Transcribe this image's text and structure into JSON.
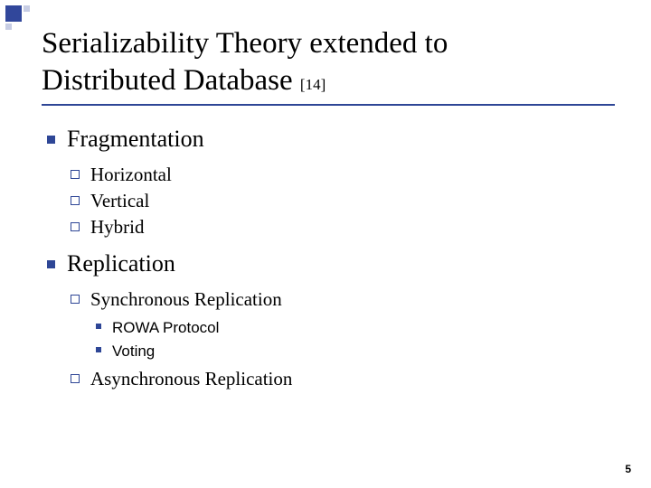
{
  "title": {
    "line1": "Serializability Theory extended to",
    "line2_main": "Distributed Database ",
    "line2_ref": "[14]"
  },
  "bullets": [
    {
      "label": "Fragmentation",
      "children": [
        {
          "label": "Horizontal"
        },
        {
          "label": "Vertical"
        },
        {
          "label": "Hybrid"
        }
      ]
    },
    {
      "label": "Replication",
      "children": [
        {
          "label": "Synchronous Replication",
          "children": [
            {
              "label": "ROWA Protocol"
            },
            {
              "label": "Voting"
            }
          ]
        },
        {
          "label": "Asynchronous Replication"
        }
      ]
    }
  ],
  "page_number": "5",
  "colors": {
    "accent": "#2e4696",
    "deco_light": "#c7cde4",
    "text": "#000000",
    "background": "#ffffff"
  }
}
